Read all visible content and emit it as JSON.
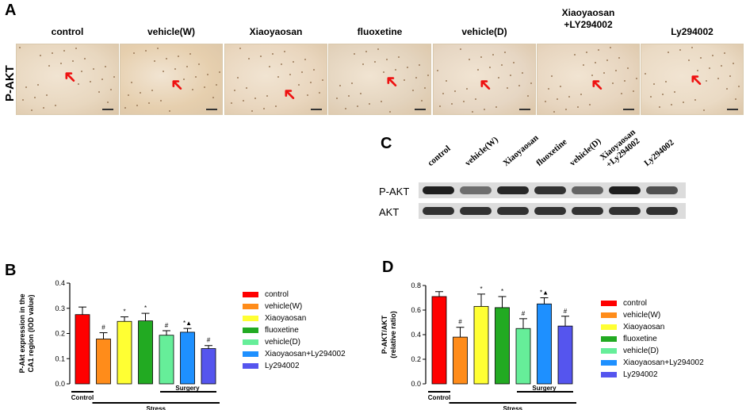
{
  "panel_a": {
    "letter": "A",
    "row_label": "P-AKT",
    "columns": [
      "control",
      "vehicle(W)",
      "Xiaoyaosan",
      "fluoxetine",
      "vehicle(D)",
      "Xiaoyaosan\n+LY294002",
      "Ly294002"
    ]
  },
  "panel_c": {
    "letter": "C",
    "lanes": [
      "control",
      "vehicle(W)",
      "Xiaoyaosan",
      "fluoxetine",
      "vehicle(D)",
      "Xiaoyaosan\n+Ly294002",
      "Ly294002"
    ],
    "bands": [
      "P-AKT",
      "AKT"
    ]
  },
  "colors": [
    "#ff0000",
    "#ff8c1a",
    "#ffff33",
    "#22aa22",
    "#66ee99",
    "#1e90ff",
    "#5555ee"
  ],
  "legend": [
    "control",
    "vehicle(W)",
    "Xiaoyaosan",
    "fluoxetine",
    "vehicle(D)",
    "Xiaoyaosan+Ly294002",
    "Ly294002"
  ],
  "chart_data": [
    {
      "letter": "B",
      "type": "bar",
      "categories": [
        "control",
        "vehicle(W)",
        "Xiaoyaosan",
        "fluoxetine",
        "vehicle(D)",
        "Xiaoyaosan+Ly294002",
        "Ly294002"
      ],
      "values": [
        0.275,
        0.178,
        0.248,
        0.25,
        0.193,
        0.205,
        0.14
      ],
      "errors": [
        0.03,
        0.025,
        0.018,
        0.03,
        0.018,
        0.015,
        0.012
      ],
      "annotations": [
        "",
        "#",
        "*",
        "*",
        "#",
        "*▲",
        "#"
      ],
      "ylabel": "P-Akt expression in the\nCA1 region (IOD value)",
      "ylim": [
        0,
        0.4
      ],
      "yticks": [
        "0.0",
        "0.1",
        "0.2",
        "0.3",
        "0.4"
      ],
      "groups": {
        "control": "Control",
        "surgery": "Surgery",
        "stress": "Stress"
      }
    },
    {
      "letter": "D",
      "type": "bar",
      "categories": [
        "control",
        "vehicle(W)",
        "Xiaoyaosan",
        "fluoxetine",
        "vehicle(D)",
        "Xiaoyaosan+Ly294002",
        "Ly294002"
      ],
      "values": [
        0.71,
        0.38,
        0.63,
        0.62,
        0.45,
        0.65,
        0.47
      ],
      "errors": [
        0.04,
        0.08,
        0.1,
        0.09,
        0.08,
        0.05,
        0.08
      ],
      "annotations": [
        "",
        "#",
        "*",
        "*",
        "#",
        "*▲",
        "#"
      ],
      "ylabel": "P-AKT/AKT\n(relative ratio)",
      "ylim": [
        0,
        0.8
      ],
      "yticks": [
        "0.0",
        "0.2",
        "0.4",
        "0.6",
        "0.8"
      ],
      "groups": {
        "control": "Control",
        "surgery": "Surgery",
        "stress": "Stress"
      }
    }
  ]
}
